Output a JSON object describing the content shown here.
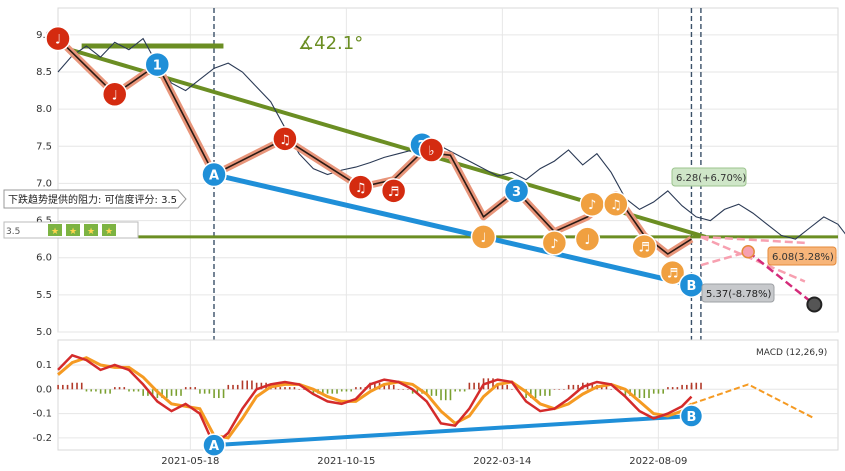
{
  "chart_data": [
    {
      "type": "line",
      "panel": "price",
      "ylim": [
        5.0,
        9.2
      ],
      "y_ticks": [
        "5.0",
        "5.5",
        "6.0",
        "6.5",
        "7.0",
        "7.5",
        "8.0",
        "8.5",
        "9.0"
      ],
      "x_ticks": [
        "2021-05-18",
        "2021-10-15",
        "2022-03-14",
        "2022-08-09"
      ],
      "angle_label": "∡42.1°",
      "resistance_box": "下跌趋势提供的阻力: 可信度评分: 3.5",
      "rating_label": "3.5",
      "rating_badges": [
        "★",
        "★",
        "★",
        "★"
      ],
      "projection_labels": [
        {
          "text": "6.28(+6.70%)",
          "color": "#cfe6c8"
        },
        {
          "text": "6.08(3.28%)",
          "color": "#f7b57a"
        },
        {
          "text": "5.37(-8.78%)",
          "color": "#c7c9cc"
        }
      ],
      "price_series": [
        [
          0,
          8.5
        ],
        [
          3,
          8.72
        ],
        [
          6,
          8.85
        ],
        [
          9,
          8.7
        ],
        [
          12,
          8.9
        ],
        [
          15,
          8.8
        ],
        [
          18,
          8.95
        ],
        [
          21,
          8.6
        ],
        [
          24,
          8.35
        ],
        [
          27,
          8.25
        ],
        [
          30,
          8.4
        ],
        [
          33,
          8.55
        ],
        [
          36,
          8.62
        ],
        [
          39,
          8.5
        ],
        [
          42,
          8.3
        ],
        [
          45,
          8.1
        ],
        [
          48,
          7.75
        ],
        [
          51,
          7.4
        ],
        [
          54,
          7.2
        ],
        [
          57,
          7.12
        ],
        [
          60,
          7.18
        ],
        [
          63,
          7.22
        ],
        [
          66,
          7.28
        ],
        [
          69,
          7.35
        ],
        [
          72,
          7.4
        ],
        [
          75,
          7.45
        ],
        [
          78,
          7.6
        ],
        [
          81,
          7.5
        ],
        [
          84,
          7.4
        ],
        [
          87,
          7.3
        ],
        [
          90,
          7.2
        ],
        [
          93,
          7.1
        ],
        [
          96,
          7.15
        ],
        [
          99,
          7.05
        ],
        [
          102,
          7.2
        ],
        [
          105,
          7.3
        ],
        [
          108,
          7.45
        ],
        [
          111,
          7.25
        ],
        [
          114,
          7.4
        ],
        [
          117,
          7.15
        ],
        [
          120,
          6.8
        ],
        [
          123,
          6.65
        ],
        [
          126,
          6.75
        ],
        [
          129,
          6.9
        ],
        [
          132,
          6.7
        ],
        [
          135,
          6.55
        ],
        [
          138,
          6.5
        ],
        [
          141,
          6.65
        ],
        [
          144,
          6.72
        ],
        [
          147,
          6.6
        ],
        [
          150,
          6.45
        ],
        [
          153,
          6.3
        ],
        [
          156,
          6.25
        ],
        [
          159,
          6.4
        ],
        [
          162,
          6.55
        ],
        [
          165,
          6.45
        ],
        [
          168,
          6.2
        ],
        [
          171,
          6.05
        ],
        [
          174,
          5.95
        ],
        [
          177,
          6.05
        ]
      ],
      "trend_points": [
        [
          0,
          8.95
        ],
        [
          12,
          8.2
        ],
        [
          21,
          8.6
        ],
        [
          33,
          7.12
        ],
        [
          48,
          7.6
        ],
        [
          64,
          6.95
        ],
        [
          71,
          7.05
        ],
        [
          77,
          7.42
        ],
        [
          83,
          7.38
        ],
        [
          90,
          6.55
        ],
        [
          97,
          6.9
        ],
        [
          105,
          6.35
        ],
        [
          112,
          6.55
        ],
        [
          118,
          6.85
        ],
        [
          124,
          6.3
        ],
        [
          129,
          6.05
        ],
        [
          134,
          6.25
        ]
      ],
      "markers": [
        {
          "x": 0,
          "y": 8.95,
          "kind": "note",
          "label": "♩",
          "color": "#d42b10"
        },
        {
          "x": 12,
          "y": 8.2,
          "kind": "note",
          "label": "♩",
          "color": "#d42b10"
        },
        {
          "x": 21,
          "y": 8.6,
          "kind": "num",
          "label": "1",
          "color": "#1f8fd8"
        },
        {
          "x": 33,
          "y": 7.12,
          "kind": "letter",
          "label": "A",
          "color": "#1f8fd8"
        },
        {
          "x": 48,
          "y": 7.6,
          "kind": "note",
          "label": "♫",
          "color": "#d42b10"
        },
        {
          "x": 64,
          "y": 6.95,
          "kind": "note",
          "label": "♫",
          "color": "#d42b10"
        },
        {
          "x": 71,
          "y": 6.9,
          "kind": "note",
          "label": "♬",
          "color": "#d42b10"
        },
        {
          "x": 77,
          "y": 7.52,
          "kind": "num",
          "label": "2",
          "color": "#1f8fd8"
        },
        {
          "x": 79,
          "y": 7.45,
          "kind": "note",
          "label": "♭",
          "color": "#d42b10"
        },
        {
          "x": 90,
          "y": 6.28,
          "kind": "note",
          "label": "♩",
          "color": "#f0a040"
        },
        {
          "x": 97,
          "y": 6.9,
          "kind": "num",
          "label": "3",
          "color": "#1f8fd8"
        },
        {
          "x": 105,
          "y": 6.2,
          "kind": "note",
          "label": "♪",
          "color": "#f0a040"
        },
        {
          "x": 112,
          "y": 6.25,
          "kind": "note",
          "label": "♩",
          "color": "#f0a040"
        },
        {
          "x": 113,
          "y": 6.72,
          "kind": "note",
          "label": "♪",
          "color": "#f0a040"
        },
        {
          "x": 118,
          "y": 6.72,
          "kind": "note",
          "label": "♫",
          "color": "#f0a040"
        },
        {
          "x": 124,
          "y": 6.15,
          "kind": "note",
          "label": "♬",
          "color": "#f0a040"
        },
        {
          "x": 130,
          "y": 5.8,
          "kind": "note",
          "label": "♬",
          "color": "#f0a040"
        },
        {
          "x": 134,
          "y": 5.63,
          "kind": "letter",
          "label": "B",
          "color": "#1f8fd8"
        }
      ],
      "resistance_line": [
        [
          0,
          8.85
        ],
        [
          137,
          6.28
        ]
      ],
      "support_line": [
        [
          33,
          7.12
        ],
        [
          134,
          5.63
        ]
      ],
      "horizontal_level": 6.28,
      "top_bar": [
        [
          5,
          8.85
        ],
        [
          35,
          8.85
        ]
      ],
      "dashed_x": [
        33,
        134,
        136
      ],
      "projections": [
        {
          "from": [
            136,
            5.9
          ],
          "to": [
            146,
            6.08
          ],
          "color": "#f7a0b0"
        },
        {
          "from": [
            136,
            6.28
          ],
          "to": [
            158,
            5.68
          ],
          "color": "#f7a0b0"
        },
        {
          "from": [
            136,
            6.28
          ],
          "to": [
            158,
            6.2
          ],
          "color": "#f7a0b0"
        },
        {
          "from": [
            146,
            6.08
          ],
          "to": [
            160,
            5.37
          ],
          "color": "#d42b7a"
        }
      ]
    },
    {
      "type": "line",
      "panel": "macd",
      "title": "MACD (12,26,9)",
      "ylim": [
        -0.25,
        0.17
      ],
      "y_ticks": [
        "0.1",
        "0.0",
        "-0.1",
        "-0.2"
      ],
      "macd_line": [
        [
          0,
          0.08
        ],
        [
          3,
          0.14
        ],
        [
          6,
          0.12
        ],
        [
          9,
          0.08
        ],
        [
          12,
          0.1
        ],
        [
          15,
          0.08
        ],
        [
          18,
          0.02
        ],
        [
          21,
          -0.05
        ],
        [
          24,
          -0.09
        ],
        [
          27,
          -0.06
        ],
        [
          30,
          -0.1
        ],
        [
          33,
          -0.23
        ],
        [
          36,
          -0.18
        ],
        [
          39,
          -0.08
        ],
        [
          42,
          0.0
        ],
        [
          45,
          0.02
        ],
        [
          48,
          0.03
        ],
        [
          51,
          0.02
        ],
        [
          54,
          -0.02
        ],
        [
          57,
          -0.05
        ],
        [
          60,
          -0.06
        ],
        [
          63,
          -0.04
        ],
        [
          66,
          0.02
        ],
        [
          69,
          0.04
        ],
        [
          72,
          0.03
        ],
        [
          75,
          0.0
        ],
        [
          78,
          -0.05
        ],
        [
          81,
          -0.14
        ],
        [
          84,
          -0.15
        ],
        [
          87,
          -0.08
        ],
        [
          90,
          0.02
        ],
        [
          93,
          0.04
        ],
        [
          96,
          0.03
        ],
        [
          99,
          -0.05
        ],
        [
          102,
          -0.09
        ],
        [
          105,
          -0.08
        ],
        [
          108,
          -0.04
        ],
        [
          111,
          0.01
        ],
        [
          114,
          0.03
        ],
        [
          117,
          0.02
        ],
        [
          120,
          -0.03
        ],
        [
          123,
          -0.09
        ],
        [
          126,
          -0.12
        ],
        [
          129,
          -0.1
        ],
        [
          132,
          -0.07
        ],
        [
          134,
          -0.03
        ]
      ],
      "signal_line": [
        [
          0,
          0.06
        ],
        [
          3,
          0.11
        ],
        [
          6,
          0.13
        ],
        [
          9,
          0.1
        ],
        [
          12,
          0.09
        ],
        [
          15,
          0.09
        ],
        [
          18,
          0.05
        ],
        [
          21,
          -0.01
        ],
        [
          24,
          -0.06
        ],
        [
          27,
          -0.07
        ],
        [
          30,
          -0.08
        ],
        [
          33,
          -0.19
        ],
        [
          36,
          -0.2
        ],
        [
          39,
          -0.12
        ],
        [
          42,
          -0.03
        ],
        [
          45,
          0.01
        ],
        [
          48,
          0.02
        ],
        [
          51,
          0.02
        ],
        [
          54,
          0.0
        ],
        [
          57,
          -0.03
        ],
        [
          60,
          -0.05
        ],
        [
          63,
          -0.05
        ],
        [
          66,
          -0.01
        ],
        [
          69,
          0.02
        ],
        [
          72,
          0.03
        ],
        [
          75,
          0.02
        ],
        [
          78,
          -0.02
        ],
        [
          81,
          -0.09
        ],
        [
          84,
          -0.14
        ],
        [
          87,
          -0.11
        ],
        [
          90,
          -0.03
        ],
        [
          93,
          0.02
        ],
        [
          96,
          0.03
        ],
        [
          99,
          -0.01
        ],
        [
          102,
          -0.06
        ],
        [
          105,
          -0.08
        ],
        [
          108,
          -0.06
        ],
        [
          111,
          -0.02
        ],
        [
          114,
          0.01
        ],
        [
          117,
          0.02
        ],
        [
          120,
          0.0
        ],
        [
          123,
          -0.05
        ],
        [
          126,
          -0.1
        ],
        [
          129,
          -0.11
        ],
        [
          132,
          -0.09
        ],
        [
          134,
          -0.06
        ]
      ],
      "macd_projection": [
        [
          134,
          -0.06
        ],
        [
          146,
          0.02
        ],
        [
          160,
          -0.12
        ]
      ],
      "macd_markers": [
        {
          "x": 33,
          "y": -0.23,
          "label": "A",
          "color": "#1f8fd8"
        },
        {
          "x": 134,
          "y": -0.11,
          "label": "B",
          "color": "#1f8fd8"
        }
      ],
      "divergence_line": [
        [
          33,
          -0.23
        ],
        [
          134,
          -0.11
        ]
      ]
    }
  ]
}
